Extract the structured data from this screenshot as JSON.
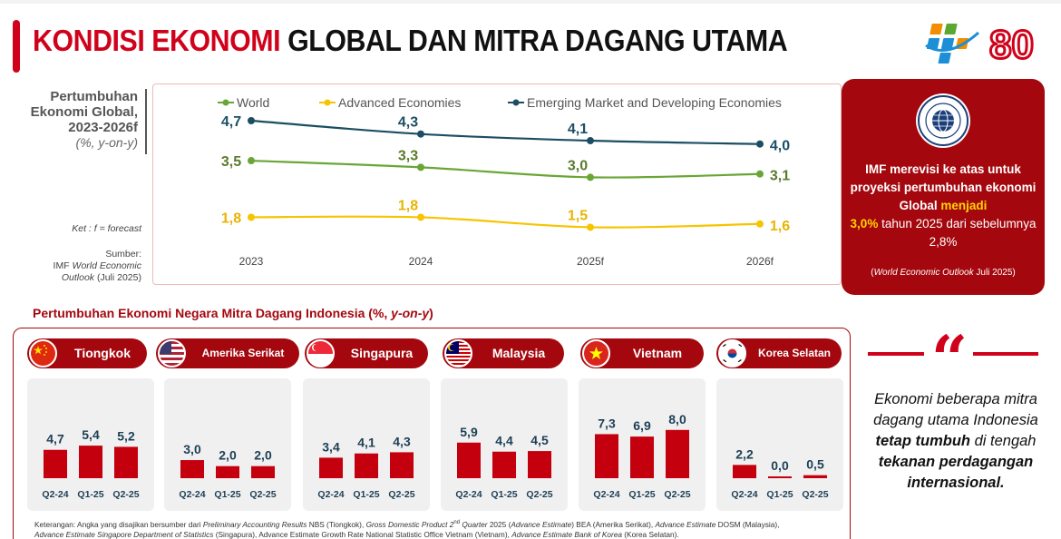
{
  "header": {
    "title_red": "KONDISI EKONOMI",
    "title_black": " GLOBAL DAN MITRA DAGANG UTAMA",
    "logo_number": "80"
  },
  "global_chart": {
    "side_title_1": "Pertumbuhan",
    "side_title_2": "Ekonomi Global,",
    "side_title_3": "2023-2026f",
    "side_unit": "(%, y-on-y)",
    "note": "Ket : f = forecast",
    "source_1": "Sumber:",
    "source_2a": "IMF ",
    "source_2b": "World Economic",
    "source_3a": "Outlook",
    "source_3b": " (Juli 2025)"
  },
  "chart_data": [
    {
      "type": "line",
      "x": [
        "2023",
        "2024",
        "2025f",
        "2026f"
      ],
      "series": [
        {
          "name": "World",
          "values": [
            3.5,
            3.3,
            3.0,
            3.1
          ],
          "labels": [
            "3,5",
            "3,3",
            "3,0",
            "3,1"
          ],
          "color": "#6aa636",
          "label_color": "#5a7a2c"
        },
        {
          "name": "Advanced Economies",
          "values": [
            1.8,
            1.8,
            1.5,
            1.6
          ],
          "labels": [
            "1,8",
            "1,8",
            "1,5",
            "1,6"
          ],
          "color": "#f7c400",
          "label_color": "#e8b400"
        },
        {
          "name": "Emerging Market and Developing Economies",
          "values": [
            4.7,
            4.3,
            4.1,
            4.0
          ],
          "labels": [
            "4,7",
            "4,3",
            "4,1",
            "4,0"
          ],
          "color": "#1c4e63",
          "label_color": "#1c4e63"
        }
      ],
      "legend_position": "top",
      "grid": false
    },
    {
      "type": "bar",
      "series_color": "#c4000f",
      "countries": [
        {
          "name": "Tiongkok",
          "categories": [
            "Q2-24",
            "Q1-25",
            "Q2-25"
          ],
          "values": [
            4.7,
            5.4,
            5.2
          ],
          "labels": [
            "4,7",
            "5,4",
            "5,2"
          ]
        },
        {
          "name": "Amerika Serikat",
          "categories": [
            "Q2-24",
            "Q1-25",
            "Q2-25"
          ],
          "values": [
            3.0,
            2.0,
            2.0
          ],
          "labels": [
            "3,0",
            "2,0",
            "2,0"
          ]
        },
        {
          "name": "Singapura",
          "categories": [
            "Q2-24",
            "Q1-25",
            "Q2-25"
          ],
          "values": [
            3.4,
            4.1,
            4.3
          ],
          "labels": [
            "3,4",
            "4,1",
            "4,3"
          ]
        },
        {
          "name": "Malaysia",
          "categories": [
            "Q2-24",
            "Q1-25",
            "Q2-25"
          ],
          "values": [
            5.9,
            4.4,
            4.5
          ],
          "labels": [
            "5,9",
            "4,4",
            "4,5"
          ]
        },
        {
          "name": "Vietnam",
          "categories": [
            "Q2-24",
            "Q1-25",
            "Q2-25"
          ],
          "values": [
            7.3,
            6.9,
            8.0
          ],
          "labels": [
            "7,3",
            "6,9",
            "8,0"
          ]
        },
        {
          "name": "Korea Selatan",
          "categories": [
            "Q2-24",
            "Q1-25",
            "Q2-25"
          ],
          "values": [
            2.2,
            0.0,
            0.5
          ],
          "labels": [
            "2,2",
            "0,0",
            "0,5"
          ]
        }
      ]
    }
  ],
  "imf_card": {
    "text_1": "IMF merevisi ke atas untuk proyeksi pertumbuhan ekonomi Global ",
    "text_hl_1": "menjadi",
    "text_hl_2": "3,0%",
    "text_2": " tahun 2025 dari sebelumnya 2,8%",
    "note_open": "(",
    "note_italic": "World Economic Outlook",
    "note_rest": " Juli 2025)"
  },
  "partners": {
    "title": "Pertumbuhan Ekonomi Negara Mitra Dagang Indonesia (%, ",
    "title_italic": "y-on-y",
    "title_close": ")"
  },
  "footnote": {
    "p1": "Keterangan: Angka yang disajikan bersumber dari ",
    "i1": "Preliminary Accounting Results",
    "p2": " NBS (Tiongkok), ",
    "i2": "Gross Domestic Product 2",
    "sup": "nd",
    "i3": " Quarter",
    "p3": " 2025 (",
    "i4": "Advance Estimate",
    "p4": ") BEA (Amerika Serikat), ",
    "i5": "Advance Estimate",
    "p5": " DOSM (Malaysia),",
    "i6": "Advance Estimate Singapore Department of Statistics",
    "p6": " (Singapura), Advance Estimate Growth Rate National Statistic Office Vietnam (Vietnam), ",
    "i7": "Advance Estimate Bank of Korea",
    "p7": " (Korea Selatan)."
  },
  "quote": {
    "mark": "“",
    "t1": "Ekonomi beberapa mitra dagang utama Indonesia ",
    "b1": "tetap tumbuh",
    "t2": " di tengah ",
    "b2": "tekanan perdagangan internasional."
  }
}
